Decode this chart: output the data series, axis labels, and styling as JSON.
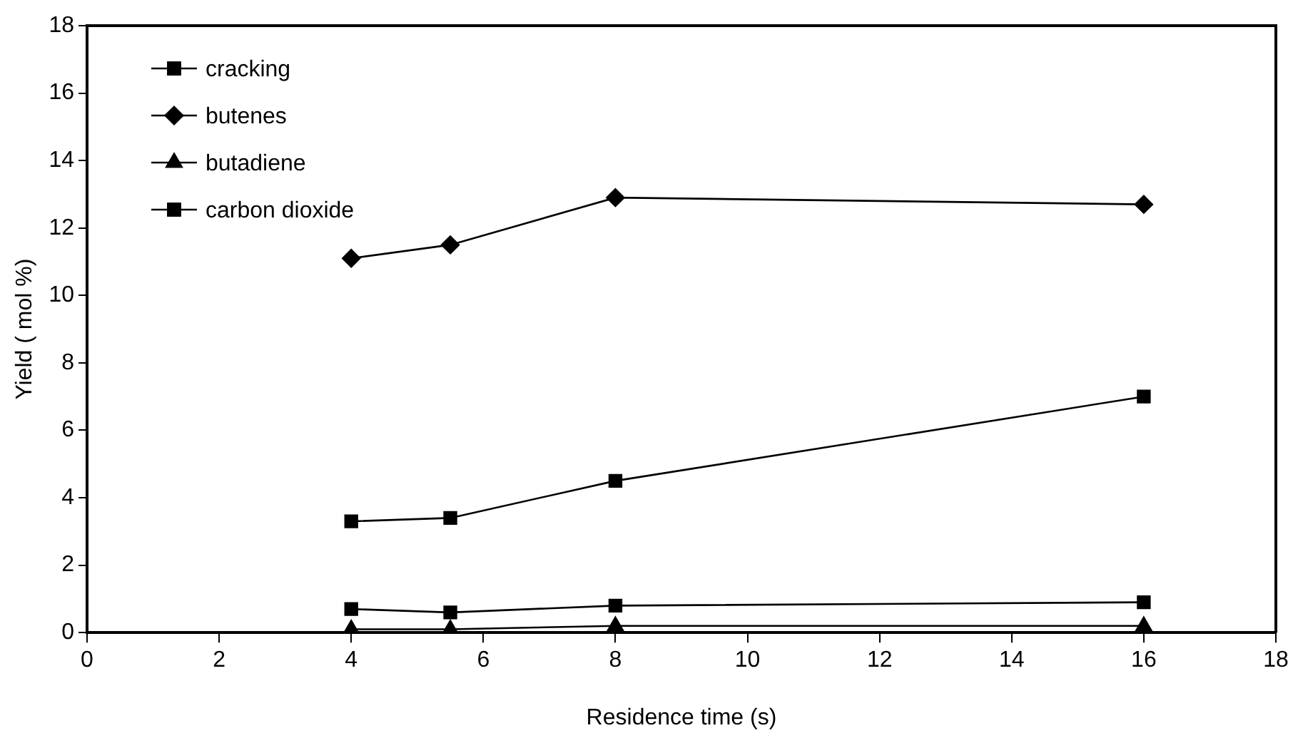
{
  "chart_data": {
    "type": "line",
    "xlabel": "Residence time (s)",
    "ylabel": "Yield ( mol %)",
    "x": [
      4,
      5.5,
      8,
      16
    ],
    "xlim": [
      0,
      18
    ],
    "xticks": [
      0,
      2,
      4,
      6,
      8,
      10,
      12,
      14,
      16,
      18
    ],
    "ylim": [
      0,
      18
    ],
    "yticks": [
      0,
      2,
      4,
      6,
      8,
      10,
      12,
      14,
      16,
      18
    ],
    "grid": false,
    "legend": "top left",
    "series": [
      {
        "name": "cracking",
        "color": "#000000",
        "marker": "square",
        "values": [
          3.3,
          3.4,
          4.5,
          7.0
        ]
      },
      {
        "name": "butenes",
        "color": "#000000",
        "marker": "diamond",
        "values": [
          11.1,
          11.5,
          12.9,
          12.7
        ]
      },
      {
        "name": "butadiene",
        "color": "#000000",
        "marker": "triangle",
        "values": [
          0.1,
          0.1,
          0.2,
          0.2
        ]
      },
      {
        "name": "carbon dioxide",
        "color": "#000000",
        "marker": "square",
        "values": [
          0.7,
          0.6,
          0.8,
          0.9
        ]
      }
    ]
  }
}
